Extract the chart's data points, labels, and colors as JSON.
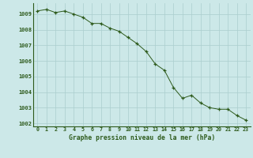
{
  "x": [
    0,
    1,
    2,
    3,
    4,
    5,
    6,
    7,
    8,
    9,
    10,
    11,
    12,
    13,
    14,
    15,
    16,
    17,
    18,
    19,
    20,
    21,
    22,
    23
  ],
  "y": [
    1009.2,
    1009.3,
    1009.1,
    1009.2,
    1009.0,
    1008.8,
    1008.4,
    1008.4,
    1008.1,
    1007.9,
    1007.5,
    1007.1,
    1006.6,
    1005.8,
    1005.4,
    1004.3,
    1003.6,
    1003.8,
    1003.3,
    1003.0,
    1002.9,
    1002.9,
    1002.5,
    1002.2
  ],
  "line_color": "#2d5a1b",
  "marker_color": "#2d5a1b",
  "bg_color": "#cce8e8",
  "grid_color": "#aacece",
  "axis_label_color": "#2d5a1b",
  "xlabel": "Graphe pression niveau de la mer (hPa)",
  "xlim": [
    -0.5,
    23.5
  ],
  "ylim": [
    1001.8,
    1009.7
  ],
  "yticks": [
    1002,
    1003,
    1004,
    1005,
    1006,
    1007,
    1008,
    1009
  ],
  "xticks": [
    0,
    1,
    2,
    3,
    4,
    5,
    6,
    7,
    8,
    9,
    10,
    11,
    12,
    13,
    14,
    15,
    16,
    17,
    18,
    19,
    20,
    21,
    22,
    23
  ]
}
